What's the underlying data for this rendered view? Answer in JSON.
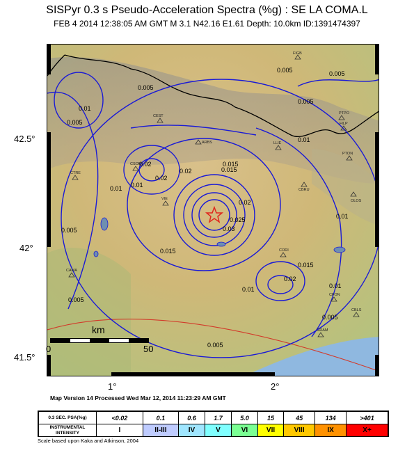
{
  "title": "SISPyr 0.3 s Pseudo-Acceleration Spectra (%g) : SE LA COMA.L",
  "subtitle": "FEB 4 2014 12:38:05 AM GMT    M 3.1    N42.16 E1.61    Depth: 10.0km    ID:1391474397",
  "axes": {
    "lat_labels": [
      "42.5°",
      "42°",
      "41.5°"
    ],
    "lon_labels": [
      "1°",
      "2°"
    ]
  },
  "scale_bar": {
    "unit": "km",
    "start": "0",
    "end": "50"
  },
  "processed": "Map Version 14 Processed Wed Mar 12, 2014 11:23:29 AM GMT",
  "contours": [
    "0.005",
    "0.01",
    "0.015",
    "0.02",
    "0.025",
    "0.03"
  ],
  "stations": [
    "FIGB",
    "PTPO",
    "FILP",
    "PTON",
    "CBRU",
    "OLOS",
    "CEST",
    "CSOR",
    "CTRE",
    "ARBS",
    "CORI",
    "CAMA",
    "CFON",
    "CBLS",
    "GRAM",
    "LLIE",
    "VIE"
  ],
  "legend": {
    "psa_label": "0.3 SEC. PSA(%g)",
    "intensity_label": "INSTRUMENTAL INTENSITY",
    "psa_values": [
      "<0.02",
      "0.1",
      "0.6",
      "1.7",
      "5.0",
      "15",
      "45",
      "134",
      ">401"
    ],
    "intensities": [
      "I",
      "II-III",
      "IV",
      "V",
      "VI",
      "VII",
      "VIII",
      "IX",
      "X+"
    ],
    "colors": [
      "#ffffff",
      "#bfccff",
      "#a0e6ff",
      "#80ffff",
      "#7aff93",
      "#ffff00",
      "#ffc800",
      "#ff9100",
      "#ff0000"
    ],
    "note": "Scale based upon Kaka and Atkinson, 2004"
  },
  "colors": {
    "contour": "#1a1ad6",
    "border": "#000000",
    "sea": "#8fb8e0",
    "line": "#d23a2a"
  }
}
